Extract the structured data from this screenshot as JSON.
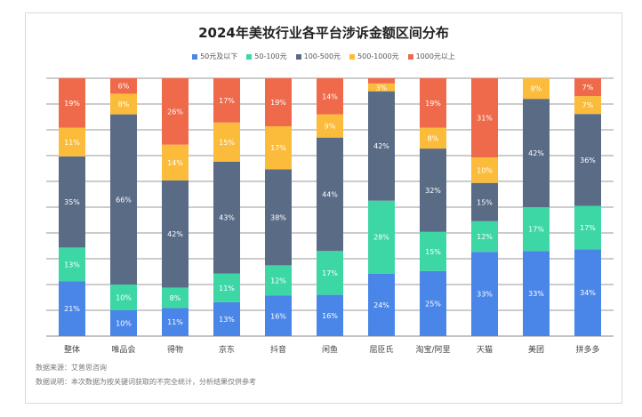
{
  "chart_data": {
    "type": "bar",
    "stacked": true,
    "percent": true,
    "title": "2024年美妆行业各平台涉诉金额区间分布",
    "categories": [
      "整体",
      "唯品会",
      "得物",
      "京东",
      "抖音",
      "闲鱼",
      "屈臣氏",
      "淘宝/阿里",
      "天猫",
      "美团",
      "拼多多"
    ],
    "series": [
      {
        "name": "50元及以下",
        "color": "#4a86e8",
        "values": [
          21,
          10,
          11,
          13,
          16,
          16,
          24,
          25,
          33,
          33,
          34
        ]
      },
      {
        "name": "50-100元",
        "color": "#3dd7a5",
        "values": [
          13,
          10,
          8,
          11,
          12,
          17,
          28,
          15,
          12,
          17,
          17
        ]
      },
      {
        "name": "100-500元",
        "color": "#5a6b86",
        "values": [
          35,
          66,
          42,
          43,
          38,
          44,
          42,
          32,
          15,
          42,
          36
        ]
      },
      {
        "name": "500-1000元",
        "color": "#fbbc3b",
        "values": [
          11,
          8,
          14,
          15,
          17,
          9,
          3,
          8,
          10,
          8,
          7
        ]
      },
      {
        "name": "1000元以上",
        "color": "#ef6a4b",
        "values": [
          19,
          6,
          26,
          17,
          19,
          14,
          2,
          19,
          31,
          0,
          7
        ]
      }
    ],
    "ylim": [
      0,
      100
    ],
    "grid": true,
    "legend_position": "top"
  },
  "notes": {
    "source": "数据来源：艾普思咨询",
    "description": "数据说明：本次数据为按关键词获取的不完全统计，分析结果仅供参考"
  }
}
